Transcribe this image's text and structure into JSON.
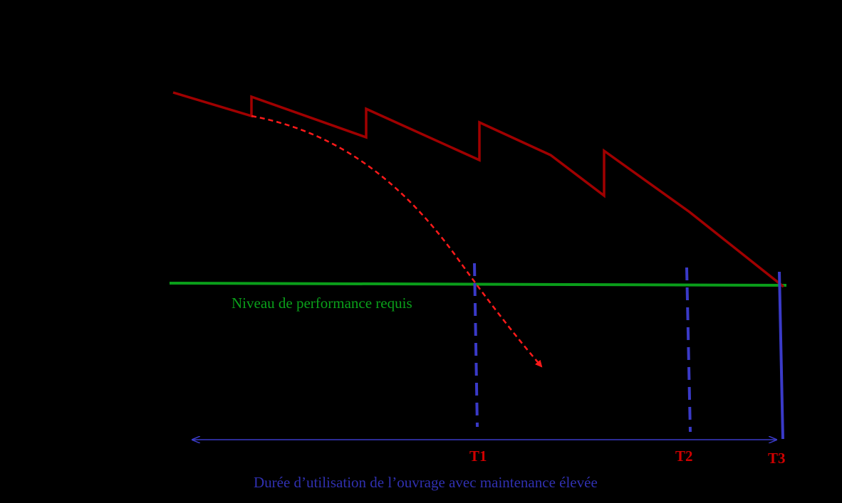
{
  "diagram": {
    "threshold_label": "Niveau de performance requis",
    "duration_label": "Durée d’utilisation de l’ouvrage avec maintenance élevée",
    "markers": {
      "t1": "T1",
      "t2": "T2",
      "t3": "T3"
    },
    "colors": {
      "background": "#000000",
      "maintained_curve": "#a00000",
      "unmaintained_curve": "#ff1a1a",
      "threshold_line": "#0a9e1a",
      "threshold_text": "#0aa01a",
      "time_markers": "#3a3ac8",
      "marker_text": "#d00000",
      "duration_text": "#3030b0"
    }
  }
}
